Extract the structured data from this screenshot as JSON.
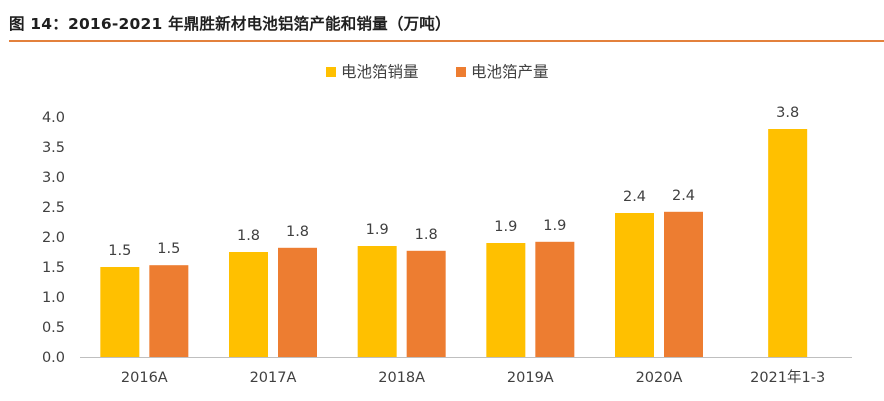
{
  "title": "图 14：2016-2021 年鼎胜新材电池铝箔产能和销量（万吨）",
  "colors": {
    "sales": "#FFC000",
    "production": "#ED7D31",
    "accent_rule": "#E3813C",
    "axis": "#BFBFBF",
    "text": "#404040"
  },
  "chart_data": {
    "type": "bar",
    "title": "图 14：2016-2021 年鼎胜新材电池铝箔产能和销量（万吨）",
    "xlabel": "",
    "ylabel": "",
    "ylim": [
      0,
      4.0
    ],
    "yticks": [
      "0.0",
      "0.5",
      "1.0",
      "1.5",
      "2.0",
      "2.5",
      "3.0",
      "3.5",
      "4.0"
    ],
    "grid": false,
    "legend_position": "top-center",
    "categories": [
      "2016A",
      "2017A",
      "2018A",
      "2019A",
      "2020A",
      "2021年1-3"
    ],
    "series": [
      {
        "name": "电池箔销量",
        "color": "#FFC000",
        "values": [
          1.5,
          1.75,
          1.85,
          1.9,
          2.4,
          3.8
        ],
        "labels": [
          "1.5",
          "1.8",
          "1.9",
          "1.9",
          "2.4",
          "3.8"
        ]
      },
      {
        "name": "电池箔产量",
        "color": "#ED7D31",
        "values": [
          1.53,
          1.82,
          1.77,
          1.92,
          2.42,
          null
        ],
        "labels": [
          "1.5",
          "1.8",
          "1.8",
          "1.9",
          "2.4",
          null
        ]
      }
    ]
  }
}
